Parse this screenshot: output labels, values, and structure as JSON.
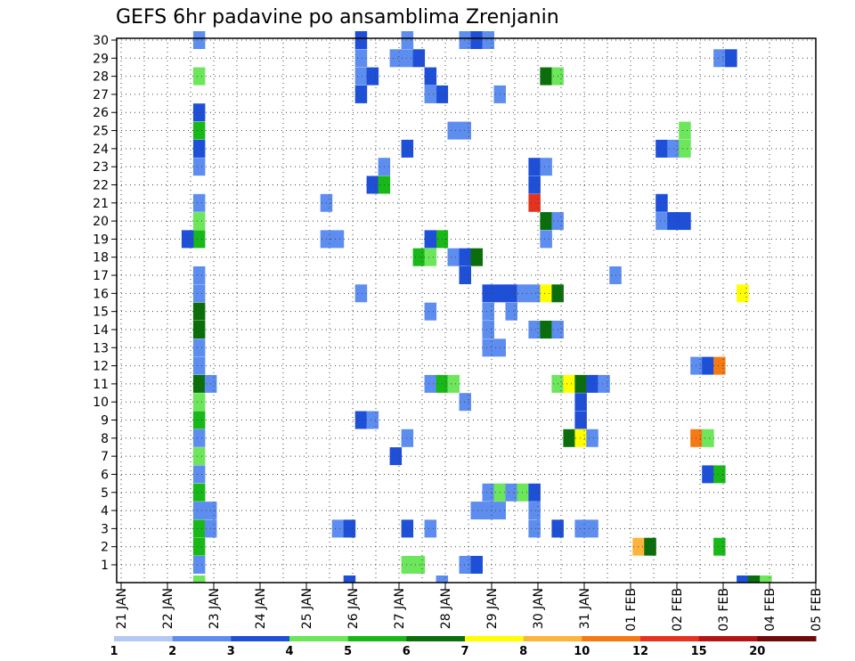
{
  "chart_data": {
    "type": "heatmap",
    "title": "GEFS 6hr padavine po ansamblima Zrenjanin",
    "x_tick_labels": [
      "21 JAN",
      "22 JAN",
      "23 JAN",
      "24 JAN",
      "25 JAN",
      "26 JAN",
      "27 JAN",
      "28 JAN",
      "29 JAN",
      "30 JAN",
      "31 JAN",
      "01 FEB",
      "02 FEB",
      "03 FEB",
      "04 FEB",
      "05 FEB"
    ],
    "y_tick_labels": [
      "1",
      "2",
      "3",
      "4",
      "5",
      "6",
      "7",
      "8",
      "9",
      "10",
      "11",
      "12",
      "13",
      "14",
      "15",
      "16",
      "17",
      "18",
      "19",
      "20",
      "21",
      "22",
      "23",
      "24",
      "25",
      "26",
      "27",
      "28",
      "29",
      "30"
    ],
    "xlim": [
      0,
      60
    ],
    "ylim": [
      0,
      30
    ],
    "grid": true,
    "colorbar": {
      "labels": [
        "1",
        "2",
        "3",
        "4",
        "5",
        "6",
        "7",
        "8",
        "10",
        "12",
        "15",
        "20"
      ],
      "colors": [
        "#b3c8f5",
        "#5e8df0",
        "#1e4fd8",
        "#6ce65a",
        "#18b818",
        "#0a6e0a",
        "#ffff00",
        "#fcb43c",
        "#f57a14",
        "#e6321e",
        "#b41414",
        "#6e0a0a"
      ]
    },
    "cells": [
      [
        6,
        29,
        1
      ],
      [
        6,
        27,
        3
      ],
      [
        6,
        25,
        2
      ],
      [
        6,
        24,
        4
      ],
      [
        6,
        23,
        2
      ],
      [
        6,
        22,
        1
      ],
      [
        6,
        20,
        1
      ],
      [
        6,
        19,
        3
      ],
      [
        6,
        18,
        4
      ],
      [
        5,
        18,
        2
      ],
      [
        6,
        16,
        1
      ],
      [
        6,
        15,
        1
      ],
      [
        6,
        14,
        5
      ],
      [
        6,
        13,
        5
      ],
      [
        6,
        12,
        1
      ],
      [
        6,
        11,
        1
      ],
      [
        6,
        10,
        5
      ],
      [
        7,
        10,
        1
      ],
      [
        6,
        9,
        3
      ],
      [
        6,
        8,
        4
      ],
      [
        6,
        7,
        1
      ],
      [
        6,
        6,
        3
      ],
      [
        6,
        5,
        1
      ],
      [
        6,
        4,
        4
      ],
      [
        6,
        3,
        1
      ],
      [
        7,
        3,
        1
      ],
      [
        6,
        2,
        4
      ],
      [
        7,
        2,
        1
      ],
      [
        6,
        1,
        4
      ],
      [
        6,
        0,
        1
      ],
      [
        6,
        -1,
        3
      ],
      [
        20,
        29,
        2
      ],
      [
        20,
        28,
        1
      ],
      [
        20,
        27,
        1
      ],
      [
        21,
        27,
        2
      ],
      [
        20,
        26,
        2
      ],
      [
        22,
        22,
        1
      ],
      [
        21,
        21,
        2
      ],
      [
        22,
        21,
        4
      ],
      [
        17,
        20,
        1
      ],
      [
        17,
        18,
        1
      ],
      [
        18,
        18,
        1
      ],
      [
        20,
        15,
        1
      ],
      [
        20,
        8,
        2
      ],
      [
        21,
        8,
        1
      ],
      [
        23,
        6,
        2
      ],
      [
        18,
        2,
        1
      ],
      [
        19,
        2,
        2
      ],
      [
        19,
        -1,
        2
      ],
      [
        24,
        29,
        1
      ],
      [
        23,
        28,
        1
      ],
      [
        24,
        28,
        1
      ],
      [
        25,
        28,
        2
      ],
      [
        24,
        23,
        2
      ],
      [
        24,
        0,
        3
      ],
      [
        25,
        0,
        3
      ],
      [
        24,
        7,
        1
      ],
      [
        24,
        2,
        2
      ],
      [
        26,
        27,
        2
      ],
      [
        27,
        26,
        2
      ],
      [
        26,
        26,
        1
      ],
      [
        27,
        18,
        4
      ],
      [
        26,
        18,
        2
      ],
      [
        25,
        17,
        4
      ],
      [
        26,
        17,
        3
      ],
      [
        28,
        17,
        1
      ],
      [
        29,
        17,
        2
      ],
      [
        30,
        17,
        5
      ],
      [
        29,
        16,
        2
      ],
      [
        26,
        14,
        1
      ],
      [
        26,
        10,
        1
      ],
      [
        27,
        10,
        4
      ],
      [
        28,
        10,
        3
      ],
      [
        29,
        9,
        1
      ],
      [
        26,
        2,
        1
      ],
      [
        29,
        0,
        1
      ],
      [
        30,
        0,
        2
      ],
      [
        27,
        -1,
        1
      ],
      [
        29,
        29,
        1
      ],
      [
        30,
        29,
        2
      ],
      [
        31,
        29,
        1
      ],
      [
        28,
        24,
        1
      ],
      [
        29,
        24,
        1
      ],
      [
        32,
        26,
        1
      ],
      [
        31,
        15,
        2
      ],
      [
        32,
        15,
        2
      ],
      [
        33,
        15,
        2
      ],
      [
        34,
        15,
        1
      ],
      [
        31,
        14,
        1
      ],
      [
        33,
        14,
        1
      ],
      [
        31,
        13,
        1
      ],
      [
        31,
        12,
        1
      ],
      [
        32,
        12,
        1
      ],
      [
        32,
        4,
        3
      ],
      [
        32,
        3,
        1
      ],
      [
        31,
        3,
        1
      ],
      [
        31,
        4,
        1
      ],
      [
        30,
        3,
        1
      ],
      [
        32,
        4,
        3
      ],
      [
        36,
        27,
        5
      ],
      [
        37,
        27,
        3
      ],
      [
        35,
        22,
        2
      ],
      [
        36,
        22,
        1
      ],
      [
        35,
        21,
        2
      ],
      [
        35,
        20,
        9
      ],
      [
        36,
        19,
        5
      ],
      [
        37,
        19,
        1
      ],
      [
        36,
        18,
        1
      ],
      [
        35,
        15,
        1
      ],
      [
        36,
        15,
        6
      ],
      [
        37,
        15,
        5
      ],
      [
        35,
        13,
        1
      ],
      [
        36,
        13,
        5
      ],
      [
        37,
        13,
        1
      ],
      [
        37,
        10,
        3
      ],
      [
        38,
        10,
        6
      ],
      [
        39,
        10,
        5
      ],
      [
        40,
        10,
        2
      ],
      [
        41,
        10,
        1
      ],
      [
        39,
        9,
        2
      ],
      [
        39,
        8,
        2
      ],
      [
        38,
        7,
        5
      ],
      [
        39,
        7,
        6
      ],
      [
        40,
        7,
        1
      ],
      [
        33,
        4,
        1
      ],
      [
        34,
        4,
        3
      ],
      [
        35,
        4,
        2
      ],
      [
        35,
        3,
        1
      ],
      [
        35,
        2,
        1
      ],
      [
        37,
        2,
        2
      ],
      [
        39,
        2,
        1
      ],
      [
        40,
        2,
        1
      ],
      [
        42,
        16,
        1
      ],
      [
        44,
        1,
        7
      ],
      [
        45,
        1,
        5
      ],
      [
        46,
        23,
        2
      ],
      [
        47,
        23,
        1
      ],
      [
        48,
        24,
        3
      ],
      [
        48,
        23,
        3
      ],
      [
        46,
        20,
        2
      ],
      [
        46,
        19,
        1
      ],
      [
        47,
        19,
        2
      ],
      [
        48,
        19,
        2
      ],
      [
        49,
        11,
        1
      ],
      [
        50,
        11,
        2
      ],
      [
        51,
        11,
        8
      ],
      [
        49,
        7,
        8
      ],
      [
        50,
        7,
        3
      ],
      [
        50,
        5,
        2
      ],
      [
        51,
        5,
        4
      ],
      [
        51,
        1,
        4
      ],
      [
        51,
        28,
        1
      ],
      [
        52,
        28,
        2
      ],
      [
        53,
        15,
        6
      ],
      [
        53,
        -1,
        2
      ],
      [
        54,
        -1,
        5
      ],
      [
        55,
        -1,
        3
      ]
    ]
  }
}
